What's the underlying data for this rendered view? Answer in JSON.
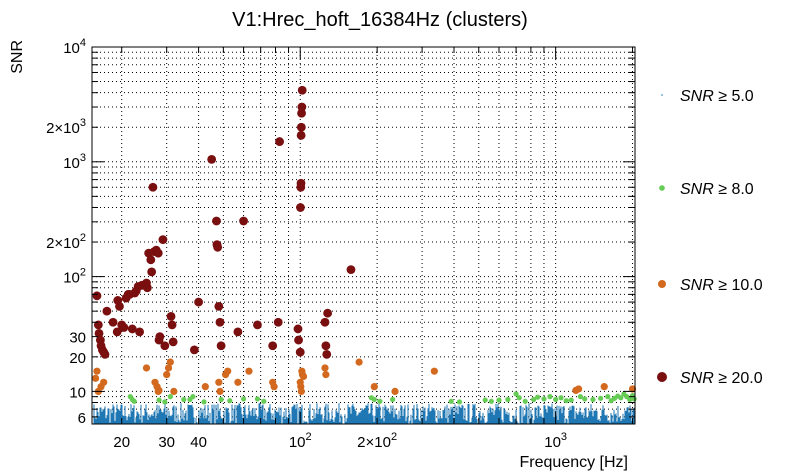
{
  "chart_data": {
    "type": "scatter",
    "title": "V1:Hrec_hoft_16384Hz (clusters)",
    "xlabel": "Frequency [Hz]",
    "ylabel": "SNR",
    "xscale": "log",
    "yscale": "log",
    "xlim": [
      15.3,
      2045
    ],
    "ylim": [
      5.2,
      10000
    ],
    "grid": true,
    "legend_position": "right",
    "x_tick_labels": [
      {
        "value": 20,
        "label": "20"
      },
      {
        "value": 30,
        "label": "30"
      },
      {
        "value": 40,
        "label": "40"
      },
      {
        "value": 100,
        "label": "10",
        "exponent": "2"
      },
      {
        "value": 200,
        "label": "2×10",
        "exponent": "2"
      },
      {
        "value": 1000,
        "label": "10",
        "exponent": "3"
      }
    ],
    "y_tick_labels": [
      {
        "value": 6,
        "label": "6"
      },
      {
        "value": 10,
        "label": "10"
      },
      {
        "value": 20,
        "label": "20"
      },
      {
        "value": 30,
        "label": "30"
      },
      {
        "value": 100,
        "label": "10",
        "exponent": "2"
      },
      {
        "value": 200,
        "label": "2×10",
        "exponent": "2"
      },
      {
        "value": 1000,
        "label": "10",
        "exponent": "3"
      },
      {
        "value": 2000,
        "label": "2×10",
        "exponent": "3"
      },
      {
        "value": 10000,
        "label": "10",
        "exponent": "4"
      }
    ],
    "legend": [
      {
        "label": "SNR ≥ 5.0",
        "var": "SNR",
        "rest": " ≥ 5.0",
        "color": "#1f77b4"
      },
      {
        "label": "SNR ≥ 8.0",
        "var": "SNR",
        "rest": " ≥ 8.0",
        "color": "#66cc55"
      },
      {
        "label": "SNR ≥ 10.0",
        "var": "SNR",
        "rest": " ≥ 10.0",
        "color": "#d2691e"
      },
      {
        "label": "SNR ≥ 20.0",
        "var": "SNR",
        "rest": " ≥ 20.0",
        "color": "#7a0f0f"
      }
    ],
    "series": [
      {
        "name": "SNR ≥ 20.0",
        "color": "#7a0f0f",
        "points": [
          [
            16,
            68
          ],
          [
            16.2,
            38
          ],
          [
            16.3,
            32
          ],
          [
            16.5,
            28
          ],
          [
            16.6,
            25
          ],
          [
            16.8,
            23
          ],
          [
            17,
            22
          ],
          [
            17.2,
            21
          ],
          [
            17.5,
            50
          ],
          [
            18.5,
            40
          ],
          [
            19.2,
            33
          ],
          [
            19.3,
            62
          ],
          [
            19.6,
            55
          ],
          [
            20,
            38
          ],
          [
            20.4,
            36
          ],
          [
            20.8,
            65
          ],
          [
            21.2,
            70
          ],
          [
            21.5,
            70
          ],
          [
            22,
            35
          ],
          [
            22.5,
            72
          ],
          [
            22.8,
            75
          ],
          [
            23.2,
            82
          ],
          [
            23.5,
            33
          ],
          [
            24,
            84
          ],
          [
            25,
            88
          ],
          [
            25.2,
            80
          ],
          [
            25.5,
            160
          ],
          [
            26,
            140
          ],
          [
            26.2,
            110
          ],
          [
            26.5,
            600
          ],
          [
            26.8,
            165
          ],
          [
            27.3,
            170
          ],
          [
            27.8,
            160
          ],
          [
            28,
            28
          ],
          [
            28.2,
            30
          ],
          [
            29,
            210
          ],
          [
            29.5,
            25
          ],
          [
            31.2,
            45
          ],
          [
            31.5,
            38
          ],
          [
            31.8,
            27
          ],
          [
            38.5,
            23
          ],
          [
            40,
            60
          ],
          [
            45,
            1050
          ],
          [
            47,
            305
          ],
          [
            47.2,
            190
          ],
          [
            47.5,
            180
          ],
          [
            48,
            55
          ],
          [
            48.5,
            40
          ],
          [
            49,
            25
          ],
          [
            57,
            33
          ],
          [
            60,
            305
          ],
          [
            68,
            38
          ],
          [
            78,
            25
          ],
          [
            82,
            40
          ],
          [
            83,
            1500
          ],
          [
            98,
            35
          ],
          [
            98.5,
            28
          ],
          [
            100,
            22
          ],
          [
            100.2,
            400
          ],
          [
            100.5,
            600
          ],
          [
            100.7,
            650
          ],
          [
            100.8,
            1700
          ],
          [
            101,
            2000
          ],
          [
            101.2,
            2650
          ],
          [
            101.5,
            3000
          ],
          [
            101.8,
            4200
          ],
          [
            125,
            40
          ],
          [
            126,
            25
          ],
          [
            127,
            21
          ],
          [
            128,
            48
          ],
          [
            158,
            115
          ]
        ]
      },
      {
        "name": "SNR ≥ 10.0",
        "color": "#d2691e",
        "points": [
          [
            15.8,
            13
          ],
          [
            16,
            15
          ],
          [
            16.2,
            10
          ],
          [
            16.6,
            11
          ],
          [
            17,
            12
          ],
          [
            25,
            16
          ],
          [
            27,
            12
          ],
          [
            27.5,
            11
          ],
          [
            27.8,
            10
          ],
          [
            28,
            10.2
          ],
          [
            30,
            14
          ],
          [
            30.5,
            16
          ],
          [
            31,
            18
          ],
          [
            32,
            10
          ],
          [
            42.5,
            11
          ],
          [
            48,
            12
          ],
          [
            48.5,
            10
          ],
          [
            51,
            14
          ],
          [
            52,
            15
          ],
          [
            57,
            12
          ],
          [
            63,
            15
          ],
          [
            78,
            12
          ],
          [
            79,
            11
          ],
          [
            100,
            12
          ],
          [
            100.5,
            11
          ],
          [
            101,
            10
          ],
          [
            101.5,
            15
          ],
          [
            102,
            14
          ],
          [
            103,
            13.5
          ],
          [
            125,
            16
          ],
          [
            126,
            14
          ],
          [
            170,
            18
          ],
          [
            195,
            11
          ],
          [
            235,
            10
          ],
          [
            335,
            15
          ],
          [
            1200,
            10.2
          ],
          [
            1230,
            10.5
          ],
          [
            1550,
            11
          ],
          [
            2000,
            10.5
          ]
        ]
      },
      {
        "name": "SNR ≥ 8.0",
        "color": "#66cc55",
        "points": [
          [
            21.6,
            9
          ],
          [
            22,
            8.5
          ],
          [
            22.4,
            8.2
          ],
          [
            28,
            8.4
          ],
          [
            29.5,
            8.1
          ],
          [
            31,
            9
          ],
          [
            35,
            8.5
          ],
          [
            37,
            8.5
          ],
          [
            38,
            9
          ],
          [
            42,
            8.1
          ],
          [
            49,
            8.5
          ],
          [
            53,
            8.3
          ],
          [
            60,
            8.6
          ],
          [
            68,
            8.6
          ],
          [
            72,
            8.2
          ],
          [
            190,
            8.8
          ],
          [
            195,
            8.5
          ],
          [
            205,
            8.2
          ],
          [
            230,
            8.5
          ],
          [
            390,
            8.2
          ],
          [
            420,
            8.1
          ],
          [
            530,
            8.4
          ],
          [
            560,
            8.2
          ],
          [
            600,
            8.4
          ],
          [
            650,
            8.5
          ],
          [
            700,
            9.5
          ],
          [
            720,
            8.8
          ],
          [
            760,
            8.2
          ],
          [
            820,
            8.5
          ],
          [
            850,
            8.9
          ],
          [
            900,
            8.6
          ],
          [
            950,
            9
          ],
          [
            1000,
            8.5
          ],
          [
            1050,
            8.8
          ],
          [
            1100,
            8.3
          ],
          [
            1150,
            8.4
          ],
          [
            1250,
            9
          ],
          [
            1300,
            8.6
          ],
          [
            1400,
            8.5
          ],
          [
            1500,
            8.7
          ],
          [
            1600,
            9
          ],
          [
            1700,
            8.7
          ],
          [
            1800,
            8.8
          ],
          [
            1850,
            9.5
          ],
          [
            1900,
            9
          ],
          [
            1950,
            8.5
          ],
          [
            2000,
            9.2
          ],
          [
            2030,
            8.6
          ],
          [
            1650,
            8.3
          ],
          [
            1750,
            9.1
          ]
        ]
      },
      {
        "name": "SNR ≥ 5.0",
        "color": "#1f77b4",
        "description": "dense band of clusters across full frequency range",
        "band": {
          "snr_min": 5.0,
          "snr_max": 8.0,
          "f_min": 15.3,
          "f_max": 2045
        }
      }
    ]
  }
}
